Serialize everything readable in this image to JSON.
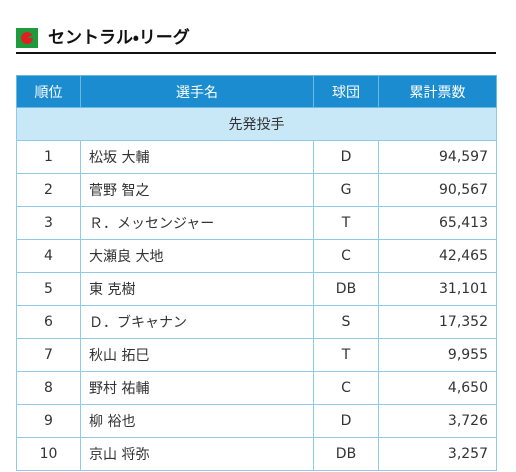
{
  "header": {
    "title": "セントラル・リーグ"
  },
  "table": {
    "columns": [
      "順位",
      "選手名",
      "球団",
      "累計票数"
    ],
    "section": "先発投手",
    "rows": [
      [
        "1",
        "松坂 大輔",
        "D",
        "94,597"
      ],
      [
        "2",
        "菅野 智之",
        "G",
        "90,567"
      ],
      [
        "3",
        "Ｒ．メッセンジャー",
        "T",
        "65,413"
      ],
      [
        "4",
        "大瀬良 大地",
        "C",
        "42,465"
      ],
      [
        "5",
        "東 克樹",
        "DB",
        "31,101"
      ],
      [
        "6",
        "Ｄ．ブキャナン",
        "S",
        "17,352"
      ],
      [
        "7",
        "秋山 拓巳",
        "T",
        "9,955"
      ],
      [
        "8",
        "野村 祐輔",
        "C",
        "4,650"
      ],
      [
        "9",
        "柳 裕也",
        "D",
        "3,726"
      ],
      [
        "10",
        "京山 将弥",
        "DB",
        "3,257"
      ]
    ]
  }
}
